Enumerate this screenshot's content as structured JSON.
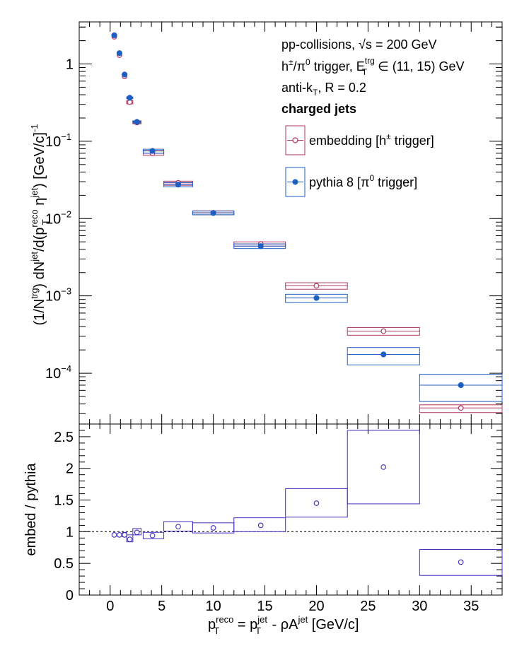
{
  "colors": {
    "embedding": "#b0365a",
    "pythia": "#1f5fc4",
    "ratio": "#3f2fc0"
  },
  "annotations": {
    "line1_pre": "pp-collisions, ",
    "line1_sqrt": "√s",
    "line1_post": " = 200 GeV",
    "line2_a": "h",
    "line2_b": "±",
    "line2_c": "/π",
    "line2_d": "0",
    "line2_e": " trigger, E",
    "line2_f": "trg",
    "line2_g": "T",
    "line2_h": " ∈ (11, 15) GeV",
    "line3_a": "anti-k",
    "line3_b": "T",
    "line3_c": ", R = 0.2",
    "line4": "charged jets"
  },
  "legend": {
    "embedding_a": "embedding [h",
    "embedding_b": "±",
    "embedding_c": " trigger]",
    "pythia_a": "pythia 8 [π",
    "pythia_b": "0",
    "pythia_c": " trigger]"
  },
  "labels": {
    "x_a": "p",
    "x_b": "reco",
    "x_c": "T",
    "x_d": " = p",
    "x_e": "jet",
    "x_f": "T",
    "x_g": " - ρA",
    "x_h": "jet",
    "x_i": " [GeV/c]",
    "y_top_a": "(1/N",
    "y_top_b": "trg",
    "y_top_c": ") dN",
    "y_top_d": "jet",
    "y_top_e": "/d(p",
    "y_top_f": "reco",
    "y_top_g": "T",
    "y_top_h": " η",
    "y_top_i": "jet",
    "y_top_j": ") [GeV/c]",
    "y_top_k": "-1",
    "y_bottom": "embed / pythia"
  },
  "chart_data": [
    {
      "type": "scatter",
      "panel": "spectrum",
      "y_scale": "log",
      "xlim": [
        -3,
        38
      ],
      "ylim": [
        2.2e-05,
        3.5
      ],
      "x_ticks": [
        0,
        5,
        10,
        15,
        20,
        25,
        30,
        35
      ],
      "y_tick_labels": [
        {
          "value": 1,
          "label": "1"
        },
        {
          "value": 0.1,
          "base": "10",
          "exp": "−1"
        },
        {
          "value": 0.01,
          "base": "10",
          "exp": "−2"
        },
        {
          "value": 0.001,
          "base": "10",
          "exp": "−3"
        },
        {
          "value": 0.0001,
          "base": "10",
          "exp": "−4"
        }
      ],
      "series": [
        {
          "name": "embedding [h± trigger]",
          "color_key": "embedding",
          "marker": "open-circle",
          "points": [
            {
              "x": 0.4,
              "y": 2.25,
              "x_lo": 0.3,
              "x_hi": 0.5,
              "y_lo": 2.18,
              "y_hi": 2.32
            },
            {
              "x": 0.9,
              "y": 1.3,
              "x_lo": 0.8,
              "x_hi": 1.0,
              "y_lo": 1.26,
              "y_hi": 1.34
            },
            {
              "x": 1.4,
              "y": 0.69,
              "x_lo": 1.2,
              "x_hi": 1.6,
              "y_lo": 0.665,
              "y_hi": 0.715
            },
            {
              "x": 1.9,
              "y": 0.32,
              "x_lo": 1.6,
              "x_hi": 2.2,
              "y_lo": 0.305,
              "y_hi": 0.335
            },
            {
              "x": 2.6,
              "y": 0.175,
              "x_lo": 2.2,
              "x_hi": 3.0,
              "y_lo": 0.168,
              "y_hi": 0.182
            },
            {
              "x": 4.1,
              "y": 0.07,
              "x_lo": 3.2,
              "x_hi": 5.2,
              "y_lo": 0.066,
              "y_hi": 0.076
            },
            {
              "x": 6.6,
              "y": 0.029,
              "x_lo": 5.2,
              "x_hi": 8.0,
              "y_lo": 0.027,
              "y_hi": 0.0305
            },
            {
              "x": 10.0,
              "y": 0.0119,
              "x_lo": 8.0,
              "x_hi": 12.0,
              "y_lo": 0.0112,
              "y_hi": 0.0126
            },
            {
              "x": 14.6,
              "y": 0.0047,
              "x_lo": 12.0,
              "x_hi": 17.0,
              "y_lo": 0.0044,
              "y_hi": 0.005
            },
            {
              "x": 20.0,
              "y": 0.00135,
              "x_lo": 17.0,
              "x_hi": 23.0,
              "y_lo": 0.00122,
              "y_hi": 0.00148
            },
            {
              "x": 26.5,
              "y": 0.00035,
              "x_lo": 23.0,
              "x_hi": 30.0,
              "y_lo": 0.00031,
              "y_hi": 0.00039
            },
            {
              "x": 34.0,
              "y": 3.55e-05,
              "x_lo": 30.0,
              "x_hi": 38.0,
              "y_lo": 3.1e-05,
              "y_hi": 3.9e-05
            }
          ]
        },
        {
          "name": "pythia 8 [π0 trigger]",
          "color_key": "pythia",
          "marker": "filled-circle",
          "points": [
            {
              "x": 0.4,
              "y": 2.35,
              "x_lo": 0.3,
              "x_hi": 0.5,
              "y_lo": 2.28,
              "y_hi": 2.42
            },
            {
              "x": 0.9,
              "y": 1.38,
              "x_lo": 0.8,
              "x_hi": 1.0,
              "y_lo": 1.34,
              "y_hi": 1.42
            },
            {
              "x": 1.4,
              "y": 0.73,
              "x_lo": 1.2,
              "x_hi": 1.6,
              "y_lo": 0.71,
              "y_hi": 0.75
            },
            {
              "x": 1.9,
              "y": 0.365,
              "x_lo": 1.6,
              "x_hi": 2.2,
              "y_lo": 0.355,
              "y_hi": 0.375
            },
            {
              "x": 2.6,
              "y": 0.178,
              "x_lo": 2.2,
              "x_hi": 3.0,
              "y_lo": 0.172,
              "y_hi": 0.184
            },
            {
              "x": 4.1,
              "y": 0.075,
              "x_lo": 3.2,
              "x_hi": 5.2,
              "y_lo": 0.07,
              "y_hi": 0.079
            },
            {
              "x": 6.6,
              "y": 0.0275,
              "x_lo": 5.2,
              "x_hi": 8.0,
              "y_lo": 0.0258,
              "y_hi": 0.0293
            },
            {
              "x": 10.0,
              "y": 0.0118,
              "x_lo": 8.0,
              "x_hi": 12.0,
              "y_lo": 0.0112,
              "y_hi": 0.0125
            },
            {
              "x": 14.6,
              "y": 0.0044,
              "x_lo": 12.0,
              "x_hi": 17.0,
              "y_lo": 0.0041,
              "y_hi": 0.0047
            },
            {
              "x": 20.0,
              "y": 0.00094,
              "x_lo": 17.0,
              "x_hi": 23.0,
              "y_lo": 0.00082,
              "y_hi": 0.00105
            },
            {
              "x": 26.5,
              "y": 0.000175,
              "x_lo": 23.0,
              "x_hi": 30.0,
              "y_lo": 0.000128,
              "y_hi": 0.000215
            },
            {
              "x": 34.0,
              "y": 7e-05,
              "x_lo": 30.0,
              "x_hi": 38.0,
              "y_lo": 4.3e-05,
              "y_hi": 9.7e-05
            }
          ]
        }
      ]
    },
    {
      "type": "scatter",
      "panel": "ratio",
      "xlim": [
        -3,
        38
      ],
      "ylim": [
        0,
        2.7
      ],
      "x_ticks": [
        0,
        5,
        10,
        15,
        20,
        25,
        30,
        35
      ],
      "y_ticks": [
        {
          "value": 0,
          "label": "0"
        },
        {
          "value": 0.5,
          "label": "0.5"
        },
        {
          "value": 1,
          "label": "1"
        },
        {
          "value": 1.5,
          "label": "1.5"
        },
        {
          "value": 2,
          "label": "2"
        },
        {
          "value": 2.5,
          "label": "2.5"
        }
      ],
      "reference_line": 1,
      "series": [
        {
          "name": "embed / pythia",
          "color_key": "ratio",
          "marker": "open-circle",
          "points": [
            {
              "x": 0.4,
              "y": 0.95,
              "x_lo": 0.3,
              "x_hi": 0.5,
              "y_lo": 0.93,
              "y_hi": 0.97
            },
            {
              "x": 0.9,
              "y": 0.95,
              "x_lo": 0.8,
              "x_hi": 1.0,
              "y_lo": 0.93,
              "y_hi": 0.97
            },
            {
              "x": 1.4,
              "y": 0.95,
              "x_lo": 1.2,
              "x_hi": 1.6,
              "y_lo": 0.92,
              "y_hi": 0.99
            },
            {
              "x": 1.9,
              "y": 0.88,
              "x_lo": 1.6,
              "x_hi": 2.2,
              "y_lo": 0.84,
              "y_hi": 0.95
            },
            {
              "x": 2.6,
              "y": 0.99,
              "x_lo": 2.2,
              "x_hi": 3.0,
              "y_lo": 0.95,
              "y_hi": 1.05
            },
            {
              "x": 4.1,
              "y": 0.94,
              "x_lo": 3.2,
              "x_hi": 5.2,
              "y_lo": 0.89,
              "y_hi": 0.99
            },
            {
              "x": 6.6,
              "y": 1.08,
              "x_lo": 5.2,
              "x_hi": 8.0,
              "y_lo": 1.01,
              "y_hi": 1.16
            },
            {
              "x": 10.0,
              "y": 1.06,
              "x_lo": 8.0,
              "x_hi": 12.0,
              "y_lo": 0.98,
              "y_hi": 1.14
            },
            {
              "x": 14.6,
              "y": 1.1,
              "x_lo": 12.0,
              "x_hi": 17.0,
              "y_lo": 1.0,
              "y_hi": 1.22
            },
            {
              "x": 20.0,
              "y": 1.45,
              "x_lo": 17.0,
              "x_hi": 23.0,
              "y_lo": 1.23,
              "y_hi": 1.68
            },
            {
              "x": 26.5,
              "y": 2.02,
              "x_lo": 23.0,
              "x_hi": 30.0,
              "y_lo": 1.44,
              "y_hi": 2.6
            },
            {
              "x": 34.0,
              "y": 0.52,
              "x_lo": 30.0,
              "x_hi": 38.0,
              "y_lo": 0.31,
              "y_hi": 0.72
            }
          ]
        }
      ]
    }
  ]
}
